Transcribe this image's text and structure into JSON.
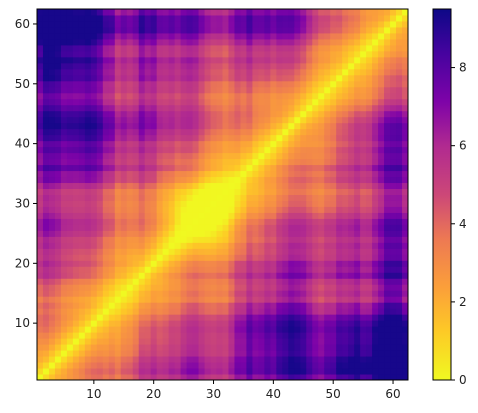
{
  "chart_data": {
    "type": "heatmap",
    "title": "",
    "xlabel": "",
    "ylabel": "",
    "x_range": [
      1,
      62
    ],
    "y_range": [
      1,
      62
    ],
    "x_ticks": [
      10,
      20,
      30,
      40,
      50,
      60
    ],
    "y_ticks": [
      10,
      20,
      30,
      40,
      50,
      60
    ],
    "x_tick_labels": [
      "10",
      "20",
      "30",
      "40",
      "50",
      "60"
    ],
    "y_tick_labels": [
      "10",
      "20",
      "30",
      "40",
      "50",
      "60"
    ],
    "colormap": "plasma_r",
    "colorbar": {
      "min": 0,
      "max": 9.5,
      "ticks": [
        0,
        2,
        4,
        6,
        8
      ],
      "tick_labels": [
        "0",
        "2",
        "4",
        "6",
        "8"
      ]
    },
    "grid": false,
    "description_of_values": "Symmetric distance matrix over residues 1–62; zero on the diagonal, increasing with |i−j|; largest values (~9) toward the corners (1,62)/(62,1) region, dense violet blocks near (40,60),(10,40),(5,57),(60,5)."
  }
}
